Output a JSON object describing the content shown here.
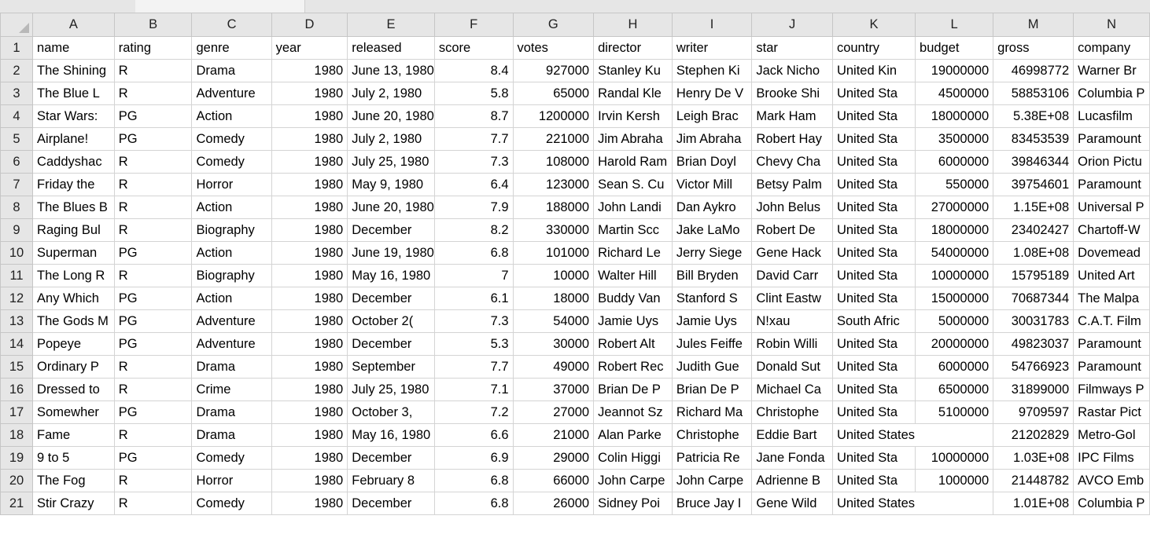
{
  "column_headers": [
    "A",
    "B",
    "C",
    "D",
    "E",
    "F",
    "G",
    "H",
    "I",
    "J",
    "K",
    "L",
    "M",
    "N"
  ],
  "rows": [
    {
      "n": "1",
      "cells": [
        "name",
        "rating",
        "genre",
        "year",
        "released",
        "score",
        "votes",
        "director",
        "writer",
        "star",
        "country",
        "budget",
        "gross",
        "company"
      ]
    },
    {
      "n": "2",
      "cells": [
        "The Shining",
        "R",
        "Drama",
        "1980",
        "June 13, 1980",
        "8.4",
        "927000",
        "Stanley Ku",
        "Stephen Ki",
        "Jack Nicho",
        "United Kin",
        "19000000",
        "46998772",
        "Warner Br"
      ]
    },
    {
      "n": "3",
      "cells": [
        "The Blue L",
        "R",
        "Adventure",
        "1980",
        "July 2, 1980",
        "5.8",
        "65000",
        "Randal Kle",
        "Henry De V",
        "Brooke Shi",
        "United Sta",
        "4500000",
        "58853106",
        "Columbia P"
      ]
    },
    {
      "n": "4",
      "cells": [
        "Star Wars:",
        "PG",
        "Action",
        "1980",
        "June 20, 1980",
        "8.7",
        "1200000",
        "Irvin Kersh",
        "Leigh Brac",
        "Mark Ham",
        "United Sta",
        "18000000",
        "5.38E+08",
        "Lucasfilm"
      ]
    },
    {
      "n": "5",
      "cells": [
        "Airplane!",
        "PG",
        "Comedy",
        "1980",
        "July 2, 1980",
        "7.7",
        "221000",
        "Jim Abraha",
        "Jim Abraha",
        "Robert Hay",
        "United Sta",
        "3500000",
        "83453539",
        "Paramount"
      ]
    },
    {
      "n": "6",
      "cells": [
        "Caddyshac",
        "R",
        "Comedy",
        "1980",
        "July 25, 1980",
        "7.3",
        "108000",
        "Harold Ram",
        "Brian Doyl",
        "Chevy Cha",
        "United Sta",
        "6000000",
        "39846344",
        "Orion Pictu"
      ]
    },
    {
      "n": "7",
      "cells": [
        "Friday the",
        "R",
        "Horror",
        "1980",
        "May 9, 1980",
        "6.4",
        "123000",
        "Sean S. Cu",
        "Victor Mill",
        "Betsy Palm",
        "United Sta",
        "550000",
        "39754601",
        "Paramount"
      ]
    },
    {
      "n": "8",
      "cells": [
        "The Blues B",
        "R",
        "Action",
        "1980",
        "June 20, 1980",
        "7.9",
        "188000",
        "John Landi",
        "Dan Aykro",
        "John Belus",
        "United Sta",
        "27000000",
        "1.15E+08",
        "Universal P"
      ]
    },
    {
      "n": "9",
      "cells": [
        "Raging Bul",
        "R",
        "Biography",
        "1980",
        "December",
        "8.2",
        "330000",
        "Martin Scc",
        "Jake LaMo",
        "Robert De",
        "United Sta",
        "18000000",
        "23402427",
        "Chartoff-W"
      ]
    },
    {
      "n": "10",
      "cells": [
        "Superman",
        "PG",
        "Action",
        "1980",
        "June 19, 1980",
        "6.8",
        "101000",
        "Richard Le",
        "Jerry Siege",
        "Gene Hack",
        "United Sta",
        "54000000",
        "1.08E+08",
        "Dovemead"
      ]
    },
    {
      "n": "11",
      "cells": [
        "The Long R",
        "R",
        "Biography",
        "1980",
        "May 16, 1980",
        "7",
        "10000",
        "Walter Hill",
        "Bill Bryden",
        "David Carr",
        "United Sta",
        "10000000",
        "15795189",
        "United Art"
      ]
    },
    {
      "n": "12",
      "cells": [
        "Any Which",
        "PG",
        "Action",
        "1980",
        "December",
        "6.1",
        "18000",
        "Buddy Van",
        "Stanford S",
        "Clint Eastw",
        "United Sta",
        "15000000",
        "70687344",
        "The Malpa"
      ]
    },
    {
      "n": "13",
      "cells": [
        "The Gods M",
        "PG",
        "Adventure",
        "1980",
        "October 2(",
        "7.3",
        "54000",
        "Jamie Uys",
        "Jamie Uys",
        "N!xau",
        "South Afric",
        "5000000",
        "30031783",
        "C.A.T. Film"
      ]
    },
    {
      "n": "14",
      "cells": [
        "Popeye",
        "PG",
        "Adventure",
        "1980",
        "December",
        "5.3",
        "30000",
        "Robert Alt",
        "Jules Feiffe",
        "Robin Willi",
        "United Sta",
        "20000000",
        "49823037",
        "Paramount"
      ]
    },
    {
      "n": "15",
      "cells": [
        "Ordinary P",
        "R",
        "Drama",
        "1980",
        "September",
        "7.7",
        "49000",
        "Robert Rec",
        "Judith Gue",
        "Donald Sut",
        "United Sta",
        "6000000",
        "54766923",
        "Paramount"
      ]
    },
    {
      "n": "16",
      "cells": [
        "Dressed to",
        "R",
        "Crime",
        "1980",
        "July 25, 1980",
        "7.1",
        "37000",
        "Brian De P",
        "Brian De P",
        "Michael Ca",
        "United Sta",
        "6500000",
        "31899000",
        "Filmways P"
      ]
    },
    {
      "n": "17",
      "cells": [
        "Somewher",
        "PG",
        "Drama",
        "1980",
        "October 3,",
        "7.2",
        "27000",
        "Jeannot Sz",
        "Richard Ma",
        "Christophe",
        "United Sta",
        "5100000",
        "9709597",
        "Rastar Pict"
      ]
    },
    {
      "n": "18",
      "cells": [
        "Fame",
        "R",
        "Drama",
        "1980",
        "May 16, 1980",
        "6.6",
        "21000",
        "Alan Parke",
        "Christophe",
        "Eddie Bart",
        "United States",
        "",
        "21202829",
        "Metro-Gol"
      ]
    },
    {
      "n": "19",
      "cells": [
        "9 to 5",
        "PG",
        "Comedy",
        "1980",
        "December",
        "6.9",
        "29000",
        "Colin Higgi",
        "Patricia Re",
        "Jane Fonda",
        "United Sta",
        "10000000",
        "1.03E+08",
        "IPC Films"
      ]
    },
    {
      "n": "20",
      "cells": [
        "The Fog",
        "R",
        "Horror",
        "1980",
        "February 8",
        "6.8",
        "66000",
        "John Carpe",
        "John Carpe",
        "Adrienne B",
        "United Sta",
        "1000000",
        "21448782",
        "AVCO Emb"
      ]
    },
    {
      "n": "21",
      "cells": [
        "Stir Crazy",
        "R",
        "Comedy",
        "1980",
        "December",
        "6.8",
        "26000",
        "Sidney Poi",
        "Bruce Jay I",
        "Gene Wild",
        "United States",
        "",
        "1.01E+08",
        "Columbia P"
      ]
    }
  ]
}
